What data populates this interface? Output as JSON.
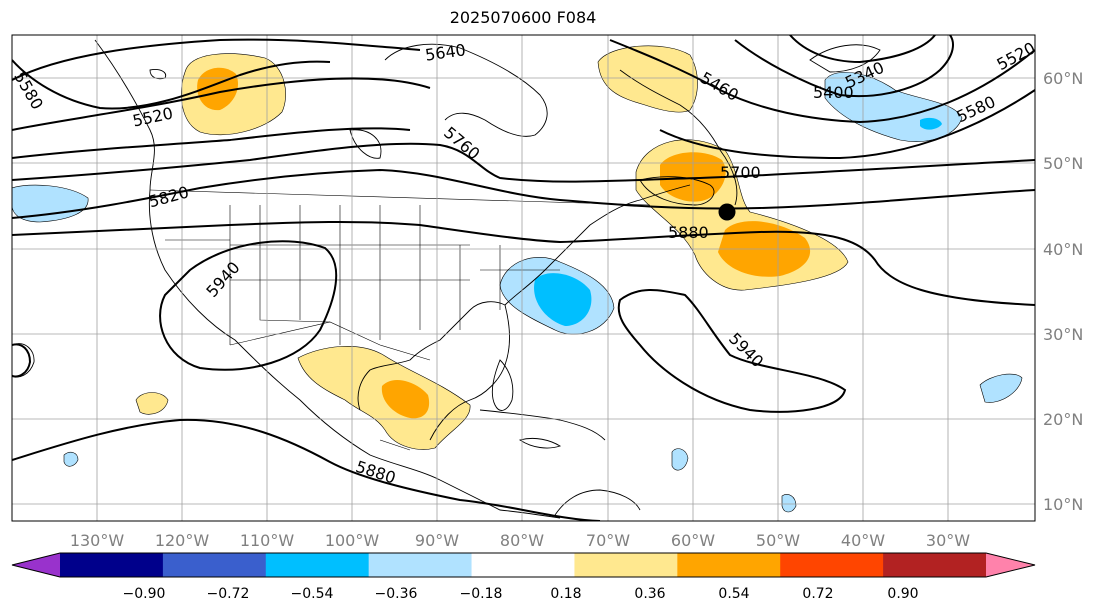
{
  "title": "2025070600 F084",
  "lon_labels": [
    "130°W",
    "120°W",
    "110°W",
    "100°W",
    "90°W",
    "80°W",
    "70°W",
    "60°W",
    "50°W",
    "40°W",
    "30°W"
  ],
  "lat_labels": [
    "60°N",
    "50°N",
    "40°N",
    "30°N",
    "20°N",
    "10°N"
  ],
  "contour_labels": [
    "5640",
    "5520",
    "5460",
    "5340",
    "5400",
    "5520",
    "5580",
    "5760",
    "5700",
    "5820",
    "5880",
    "5940",
    "5940",
    "5880",
    "5580"
  ],
  "colorbar": {
    "tick_labels": [
      "−0.90",
      "−0.72",
      "−0.54",
      "−0.36",
      "−0.18",
      "0.18",
      "0.36",
      "0.54",
      "0.72",
      "0.90"
    ],
    "colors": [
      "#9932cc",
      "#00008b",
      "#3a5fcd",
      "#00bfff",
      "#b0e2ff",
      "#ffffff",
      "#ffe88f",
      "#ffa500",
      "#ff4500",
      "#b22222",
      "#ff82ab"
    ]
  },
  "map": {
    "projection": "PlateCarree",
    "lon_range": [
      -138,
      -18
    ],
    "lat_range": [
      8,
      65
    ],
    "grid": true,
    "marker": "black dot near 56°W, 44°N"
  }
}
